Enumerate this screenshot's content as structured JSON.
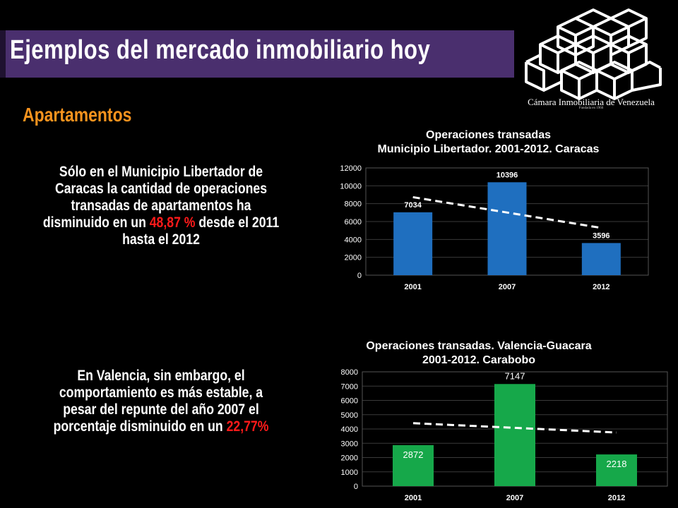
{
  "slide": {
    "title": "Ejemplos del mercado inmobiliario hoy",
    "subtitle": "Apartamentos",
    "logo": {
      "icon": "stacked-cubes-logo",
      "name": "Cámara Inmobiliaria de Venezuela",
      "founded": "Fundada en 1966"
    },
    "paragraph1": {
      "pre": "Sólo en el Municipio Libertador de Caracas la cantidad de operaciones transadas de apartamentos ha disminuido en un ",
      "highlight": "48,87 %",
      "post": " desde el 2011 hasta el 2012"
    },
    "paragraph2": {
      "pre": "En Valencia, sin embargo, el comportamiento es más estable, a pesar del repunte del año 2007 el porcentaje disminuido en un ",
      "highlight": "22,77%",
      "post": ""
    },
    "highlight_color": "#ff1a1a",
    "title_bar_color": "#4a2f6e",
    "subtitle_color": "#f7931e"
  },
  "chart_data": [
    {
      "type": "bar",
      "title_line1": "Operaciones transadas",
      "title_line2": "Municipio Libertador. 2001-2012. Caracas",
      "categories": [
        "2001",
        "2007",
        "2012"
      ],
      "values": [
        7034,
        10396,
        3596
      ],
      "value_labels": [
        "7034",
        "10396",
        "3596"
      ],
      "ylim": [
        0,
        12000
      ],
      "yticks": [
        "0",
        "2000",
        "4000",
        "6000",
        "8000",
        "10000",
        "12000"
      ],
      "bar_color": "#1f6fbf",
      "trendline": {
        "style": "dashed",
        "color": "#ffffff"
      },
      "grid": true,
      "legend": "none"
    },
    {
      "type": "bar",
      "title_line1": "Operaciones transadas. Valencia-Guacara",
      "title_line2": "2001-2012. Carabobo",
      "categories": [
        "2001",
        "2007",
        "2012"
      ],
      "values": [
        2872,
        7147,
        2218
      ],
      "value_labels": [
        "2872",
        "7147",
        "2218"
      ],
      "ylim": [
        0,
        8000
      ],
      "yticks": [
        "0",
        "1000",
        "2000",
        "3000",
        "4000",
        "5000",
        "6000",
        "7000",
        "8000"
      ],
      "bar_color": "#16a84a",
      "trendline": {
        "style": "dashed",
        "color": "#ffffff"
      },
      "grid": true,
      "legend": "none"
    }
  ]
}
